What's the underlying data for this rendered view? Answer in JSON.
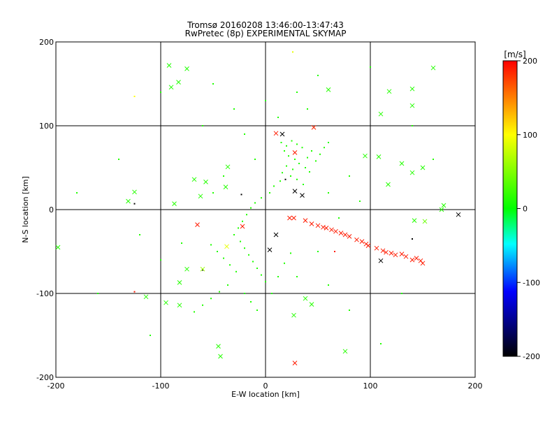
{
  "title_line1": "Tromsø 20160208 13:46:00-13:47:43",
  "title_line2": "RwPretec (8p) EXPERIMENTAL SKYMAP",
  "chart_data": {
    "type": "scatter",
    "xlabel": "E-W location [km]",
    "ylabel": "N-S location [km]",
    "xlim": [
      -200,
      200
    ],
    "ylim": [
      -200,
      200
    ],
    "xticks": [
      -200,
      -100,
      0,
      100,
      200
    ],
    "yticks": [
      -200,
      -100,
      0,
      100,
      200
    ],
    "grid": true,
    "colorbar": {
      "label": "[m/s]",
      "range": [
        -200,
        200
      ],
      "ticks": [
        200,
        100,
        0,
        -100,
        -200
      ],
      "colors": [
        "#ff0000",
        "#ffff00",
        "#00ff00",
        "#00ffff",
        "#0000ff",
        "#000000"
      ]
    },
    "points_x_markers": [
      {
        "x": -92,
        "y": 172,
        "v": 12
      },
      {
        "x": -75,
        "y": 168,
        "v": 12
      },
      {
        "x": -90,
        "y": 146,
        "v": 12
      },
      {
        "x": -83,
        "y": 152,
        "v": 12
      },
      {
        "x": 60,
        "y": 143,
        "v": 14
      },
      {
        "x": 160,
        "y": 169,
        "v": 14
      },
      {
        "x": 140,
        "y": 144,
        "v": 14
      },
      {
        "x": 140,
        "y": 124,
        "v": 14
      },
      {
        "x": 118,
        "y": 141,
        "v": 14
      },
      {
        "x": 110,
        "y": 114,
        "v": 14
      },
      {
        "x": 95,
        "y": 64,
        "v": 14
      },
      {
        "x": 108,
        "y": 63,
        "v": 14
      },
      {
        "x": 130,
        "y": 55,
        "v": 14
      },
      {
        "x": 150,
        "y": 50,
        "v": 14
      },
      {
        "x": 140,
        "y": 44,
        "v": 14
      },
      {
        "x": 117,
        "y": 30,
        "v": 14
      },
      {
        "x": 170,
        "y": 5,
        "v": 14
      },
      {
        "x": 168,
        "y": 0,
        "v": 14
      },
      {
        "x": -68,
        "y": 36,
        "v": 14
      },
      {
        "x": -57,
        "y": 33,
        "v": 14
      },
      {
        "x": -36,
        "y": 51,
        "v": 14
      },
      {
        "x": -87,
        "y": 7,
        "v": 14
      },
      {
        "x": -125,
        "y": 21,
        "v": 14
      },
      {
        "x": -131,
        "y": 10,
        "v": 14
      },
      {
        "x": -62,
        "y": 16,
        "v": 14
      },
      {
        "x": -38,
        "y": 27,
        "v": 14
      },
      {
        "x": 142,
        "y": -13,
        "v": 14
      },
      {
        "x": -75,
        "y": -71,
        "v": 14
      },
      {
        "x": -82,
        "y": -87,
        "v": 14
      },
      {
        "x": -114,
        "y": -104,
        "v": 14
      },
      {
        "x": -95,
        "y": -111,
        "v": 14
      },
      {
        "x": -82,
        "y": -114,
        "v": 14
      },
      {
        "x": -45,
        "y": -163,
        "v": 14
      },
      {
        "x": -43,
        "y": -175,
        "v": 14
      },
      {
        "x": 76,
        "y": -169,
        "v": 14
      },
      {
        "x": 44,
        "y": -113,
        "v": 14
      },
      {
        "x": 38,
        "y": -106,
        "v": 14
      },
      {
        "x": 27,
        "y": -126,
        "v": 14
      },
      {
        "x": -198,
        "y": -45,
        "v": 14
      },
      {
        "x": -60,
        "y": -71,
        "v": 60
      },
      {
        "x": -37,
        "y": -44,
        "v": 90
      },
      {
        "x": 152,
        "y": -14,
        "v": 40
      },
      {
        "x": 10,
        "y": 91,
        "v": 190
      },
      {
        "x": 46,
        "y": 98,
        "v": 185
      },
      {
        "x": 28,
        "y": 68,
        "v": 190
      },
      {
        "x": 23,
        "y": -10,
        "v": 190
      },
      {
        "x": 27,
        "y": -10,
        "v": 190
      },
      {
        "x": 38,
        "y": -13,
        "v": 190
      },
      {
        "x": 44,
        "y": -17,
        "v": 190
      },
      {
        "x": 50,
        "y": -19,
        "v": 190
      },
      {
        "x": 55,
        "y": -21,
        "v": 190
      },
      {
        "x": 58,
        "y": -22,
        "v": 190
      },
      {
        "x": 63,
        "y": -24,
        "v": 190
      },
      {
        "x": 67,
        "y": -26,
        "v": 190
      },
      {
        "x": 72,
        "y": -28,
        "v": 190
      },
      {
        "x": 76,
        "y": -30,
        "v": 190
      },
      {
        "x": 80,
        "y": -32,
        "v": 190
      },
      {
        "x": 87,
        "y": -36,
        "v": 190
      },
      {
        "x": 92,
        "y": -38,
        "v": 190
      },
      {
        "x": 96,
        "y": -41,
        "v": 190
      },
      {
        "x": 98,
        "y": -43,
        "v": 190
      },
      {
        "x": 106,
        "y": -46,
        "v": 190
      },
      {
        "x": 112,
        "y": -49,
        "v": 190
      },
      {
        "x": 115,
        "y": -51,
        "v": 190
      },
      {
        "x": 120,
        "y": -52,
        "v": 190
      },
      {
        "x": 124,
        "y": -54,
        "v": 190
      },
      {
        "x": 130,
        "y": -53,
        "v": 190
      },
      {
        "x": 134,
        "y": -56,
        "v": 190
      },
      {
        "x": 140,
        "y": -60,
        "v": 190
      },
      {
        "x": 144,
        "y": -58,
        "v": 190
      },
      {
        "x": 148,
        "y": -61,
        "v": 190
      },
      {
        "x": 150,
        "y": -64,
        "v": 190
      },
      {
        "x": -65,
        "y": -18,
        "v": 190
      },
      {
        "x": -22,
        "y": -20,
        "v": 190
      },
      {
        "x": 28,
        "y": -183,
        "v": 190
      },
      {
        "x": 16,
        "y": 90,
        "v": -200
      },
      {
        "x": 35,
        "y": 17,
        "v": -200
      },
      {
        "x": 28,
        "y": 22,
        "v": -200
      },
      {
        "x": 184,
        "y": -6,
        "v": -200
      },
      {
        "x": 110,
        "y": -61,
        "v": -200
      },
      {
        "x": 4,
        "y": -48,
        "v": -200
      },
      {
        "x": 10,
        "y": -30,
        "v": -200
      }
    ],
    "points_dots": [
      {
        "x": 15,
        "y": 80,
        "v": 12
      },
      {
        "x": 20,
        "y": 76,
        "v": 12
      },
      {
        "x": 25,
        "y": 82,
        "v": 12
      },
      {
        "x": 30,
        "y": 78,
        "v": 12
      },
      {
        "x": 35,
        "y": 74,
        "v": 12
      },
      {
        "x": 18,
        "y": 70,
        "v": 12
      },
      {
        "x": 22,
        "y": 64,
        "v": 12
      },
      {
        "x": 28,
        "y": 60,
        "v": 12
      },
      {
        "x": 32,
        "y": 55,
        "v": 12
      },
      {
        "x": 38,
        "y": 50,
        "v": 12
      },
      {
        "x": 42,
        "y": 45,
        "v": 12
      },
      {
        "x": 26,
        "y": 48,
        "v": 12
      },
      {
        "x": 20,
        "y": 52,
        "v": 12
      },
      {
        "x": 16,
        "y": 44,
        "v": 12
      },
      {
        "x": 24,
        "y": 40,
        "v": 12
      },
      {
        "x": 30,
        "y": 36,
        "v": 12
      },
      {
        "x": 36,
        "y": 30,
        "v": 12
      },
      {
        "x": 14,
        "y": 34,
        "v": 12
      },
      {
        "x": 8,
        "y": 28,
        "v": 12
      },
      {
        "x": 4,
        "y": 20,
        "v": 12
      },
      {
        "x": -4,
        "y": 14,
        "v": 12
      },
      {
        "x": -10,
        "y": 8,
        "v": 12
      },
      {
        "x": -14,
        "y": 2,
        "v": 12
      },
      {
        "x": -18,
        "y": -6,
        "v": 12
      },
      {
        "x": -22,
        "y": -14,
        "v": 12
      },
      {
        "x": -26,
        "y": -22,
        "v": 12
      },
      {
        "x": -30,
        "y": -30,
        "v": 12
      },
      {
        "x": -24,
        "y": -38,
        "v": 12
      },
      {
        "x": -20,
        "y": -46,
        "v": 12
      },
      {
        "x": -16,
        "y": -54,
        "v": 12
      },
      {
        "x": -12,
        "y": -62,
        "v": 12
      },
      {
        "x": -8,
        "y": -70,
        "v": 12
      },
      {
        "x": -4,
        "y": -78,
        "v": 12
      },
      {
        "x": 0,
        "y": -86,
        "v": 12
      },
      {
        "x": -28,
        "y": -74,
        "v": 12
      },
      {
        "x": -34,
        "y": -66,
        "v": 12
      },
      {
        "x": -40,
        "y": -58,
        "v": 12
      },
      {
        "x": -46,
        "y": -50,
        "v": 12
      },
      {
        "x": -52,
        "y": -42,
        "v": 12
      },
      {
        "x": -36,
        "y": -90,
        "v": 12
      },
      {
        "x": -44,
        "y": -98,
        "v": 12
      },
      {
        "x": -52,
        "y": -106,
        "v": 12
      },
      {
        "x": -60,
        "y": -114,
        "v": 12
      },
      {
        "x": -68,
        "y": -122,
        "v": 12
      },
      {
        "x": -20,
        "y": -100,
        "v": 12
      },
      {
        "x": -14,
        "y": -110,
        "v": 12
      },
      {
        "x": -8,
        "y": -120,
        "v": 12
      },
      {
        "x": 6,
        "y": -100,
        "v": 12
      },
      {
        "x": 12,
        "y": -80,
        "v": 12
      },
      {
        "x": 18,
        "y": -64,
        "v": 12
      },
      {
        "x": 24,
        "y": -52,
        "v": 12
      },
      {
        "x": 40,
        "y": 62,
        "v": 12
      },
      {
        "x": 44,
        "y": 70,
        "v": 12
      },
      {
        "x": 48,
        "y": 58,
        "v": 12
      },
      {
        "x": 52,
        "y": 66,
        "v": 12
      },
      {
        "x": 56,
        "y": 74,
        "v": 12
      },
      {
        "x": 60,
        "y": 80,
        "v": 12
      },
      {
        "x": 12,
        "y": 110,
        "v": 12
      },
      {
        "x": 40,
        "y": 120,
        "v": 12
      },
      {
        "x": 30,
        "y": 140,
        "v": 12
      },
      {
        "x": 0,
        "y": 130,
        "v": 12
      },
      {
        "x": -30,
        "y": 120,
        "v": 12
      },
      {
        "x": -60,
        "y": 100,
        "v": 12
      },
      {
        "x": -20,
        "y": 90,
        "v": 12
      },
      {
        "x": -10,
        "y": 60,
        "v": 12
      },
      {
        "x": -40,
        "y": 40,
        "v": 12
      },
      {
        "x": -50,
        "y": 20,
        "v": 12
      },
      {
        "x": 60,
        "y": 20,
        "v": 12
      },
      {
        "x": 80,
        "y": 40,
        "v": 12
      },
      {
        "x": 90,
        "y": 10,
        "v": 12
      },
      {
        "x": 70,
        "y": -10,
        "v": 12
      },
      {
        "x": 50,
        "y": -50,
        "v": 12
      },
      {
        "x": 30,
        "y": -80,
        "v": 12
      },
      {
        "x": 60,
        "y": -90,
        "v": 12
      },
      {
        "x": 80,
        "y": -120,
        "v": 12
      },
      {
        "x": -80,
        "y": -40,
        "v": 12
      },
      {
        "x": -100,
        "y": -60,
        "v": 12
      },
      {
        "x": -120,
        "y": -30,
        "v": 12
      },
      {
        "x": -140,
        "y": 60,
        "v": 12
      },
      {
        "x": -100,
        "y": 140,
        "v": 12
      },
      {
        "x": -50,
        "y": 150,
        "v": 12
      },
      {
        "x": 50,
        "y": 160,
        "v": 12
      },
      {
        "x": 100,
        "y": 170,
        "v": 12
      },
      {
        "x": 140,
        "y": 100,
        "v": 12
      },
      {
        "x": 160,
        "y": 60,
        "v": 12
      },
      {
        "x": 130,
        "y": -100,
        "v": 12
      },
      {
        "x": 110,
        "y": -160,
        "v": 12
      },
      {
        "x": -110,
        "y": -150,
        "v": 12
      },
      {
        "x": -160,
        "y": -100,
        "v": 12
      },
      {
        "x": -180,
        "y": 20,
        "v": 12
      },
      {
        "x": -125,
        "y": 135,
        "v": 100
      },
      {
        "x": 26,
        "y": 188,
        "v": 90
      },
      {
        "x": -125,
        "y": 7,
        "v": -200
      },
      {
        "x": -125,
        "y": -98,
        "v": 190
      },
      {
        "x": 140,
        "y": -35,
        "v": -200
      },
      {
        "x": 66,
        "y": -50,
        "v": 190
      },
      {
        "x": -60,
        "y": -72,
        "v": -200
      },
      {
        "x": 19,
        "y": 36,
        "v": -200
      },
      {
        "x": -23,
        "y": 18,
        "v": -200
      }
    ]
  }
}
